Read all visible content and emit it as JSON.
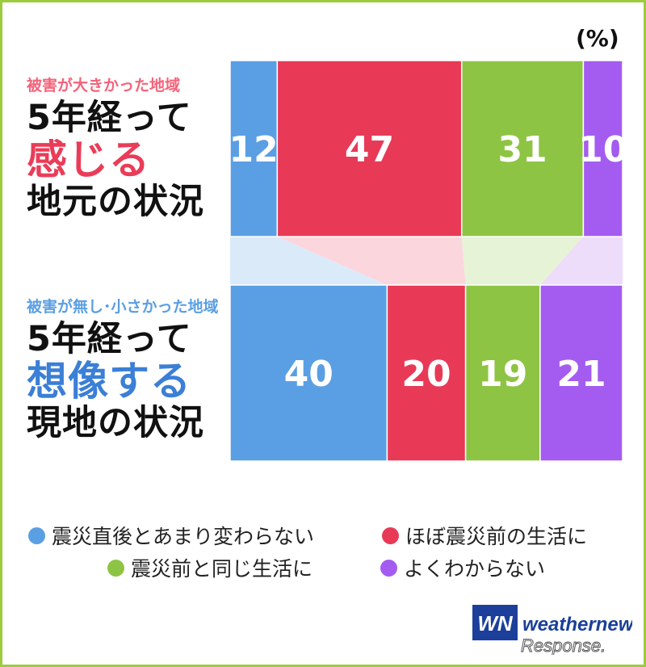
{
  "chart_data": {
    "type": "bar",
    "orientation": "horizontal",
    "stacked": true,
    "normalized": true,
    "unit_label": "(%)",
    "xlim": [
      0,
      100
    ],
    "categories": [
      {
        "caption": "被害が大きかった地域",
        "line1": "5年経って",
        "emphasis": "感じる",
        "line3": "地元の状況"
      },
      {
        "caption": "被害が無し･小さかった地域",
        "line1": "5年経って",
        "emphasis": "想像する",
        "line3": "現地の状況"
      }
    ],
    "series": [
      {
        "name": "震災直後とあまり変わらない",
        "color": "#5a9fe3",
        "values": [
          12,
          40
        ]
      },
      {
        "name": "ほぼ震災前の生活に",
        "color": "#e83a57",
        "values": [
          47,
          20
        ]
      },
      {
        "name": "震災前と同じ生活に",
        "color": "#8ec443",
        "values": [
          31,
          19
        ]
      },
      {
        "name": "よくわからない",
        "color": "#a45cf0",
        "values": [
          10,
          21
        ]
      }
    ]
  },
  "colors": {
    "frame": "#9ccc3c",
    "caption_red": "#f4637a",
    "caption_blue": "#5a9fe3",
    "emphasis_red": "#ea3c58",
    "emphasis_blue": "#3b7fd6"
  },
  "logo": {
    "mark": "WN",
    "name": "weathernews",
    "sub": "Response."
  }
}
